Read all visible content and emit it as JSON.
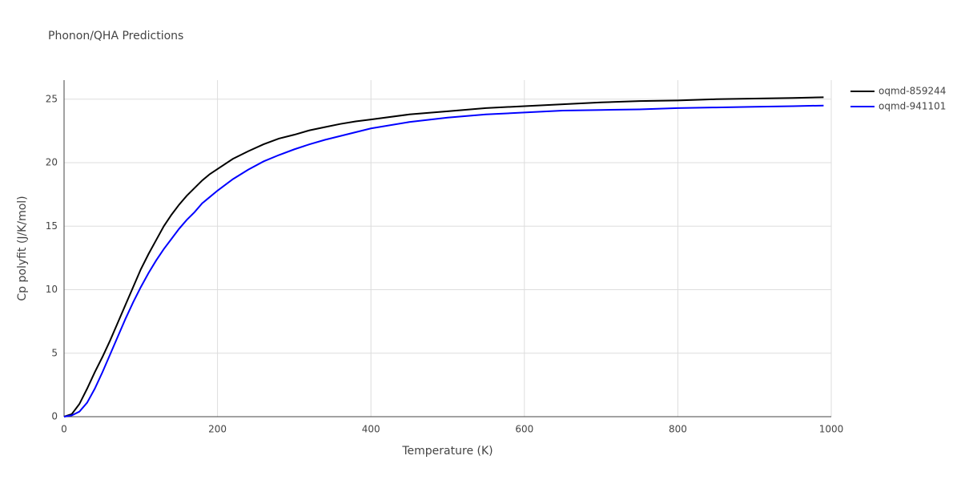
{
  "chart_data": {
    "type": "line",
    "title": "Phonon/QHA Predictions",
    "x_label": "Temperature (K)",
    "y_label": "Cp polyfit (J/K/mol)",
    "x": [
      0,
      10,
      20,
      30,
      40,
      50,
      60,
      70,
      80,
      90,
      100,
      110,
      120,
      130,
      140,
      150,
      160,
      170,
      180,
      190,
      200,
      220,
      240,
      260,
      280,
      300,
      320,
      340,
      360,
      380,
      400,
      450,
      500,
      550,
      600,
      650,
      700,
      750,
      800,
      850,
      900,
      950,
      990
    ],
    "series": [
      {
        "name": "oqmd-859244",
        "color": "#000000",
        "values": [
          0,
          0.2,
          1.0,
          2.2,
          3.5,
          4.7,
          6.0,
          7.4,
          8.8,
          10.2,
          11.6,
          12.8,
          13.9,
          15.0,
          15.9,
          16.7,
          17.4,
          18.0,
          18.6,
          19.1,
          19.5,
          20.3,
          20.9,
          21.45,
          21.9,
          22.2,
          22.55,
          22.8,
          23.05,
          23.25,
          23.4,
          23.8,
          24.05,
          24.3,
          24.45,
          24.6,
          24.75,
          24.85,
          24.9,
          25.0,
          25.05,
          25.1,
          25.15
        ]
      },
      {
        "name": "oqmd-941101",
        "color": "#0000ff",
        "values": [
          0,
          0.1,
          0.4,
          1.1,
          2.2,
          3.5,
          4.9,
          6.3,
          7.7,
          9.0,
          10.2,
          11.3,
          12.3,
          13.2,
          14.0,
          14.8,
          15.5,
          16.1,
          16.8,
          17.3,
          17.8,
          18.7,
          19.45,
          20.1,
          20.6,
          21.05,
          21.45,
          21.8,
          22.1,
          22.4,
          22.7,
          23.2,
          23.55,
          23.8,
          23.95,
          24.1,
          24.15,
          24.2,
          24.3,
          24.35,
          24.4,
          24.45,
          24.5
        ]
      }
    ],
    "xlim": [
      0,
      1000
    ],
    "xticks": [
      0,
      200,
      400,
      600,
      800,
      1000
    ],
    "ylim": [
      0,
      26.5
    ],
    "yticks": [
      0,
      5,
      10,
      15,
      20,
      25
    ],
    "grid": true,
    "legend": "top-right"
  }
}
